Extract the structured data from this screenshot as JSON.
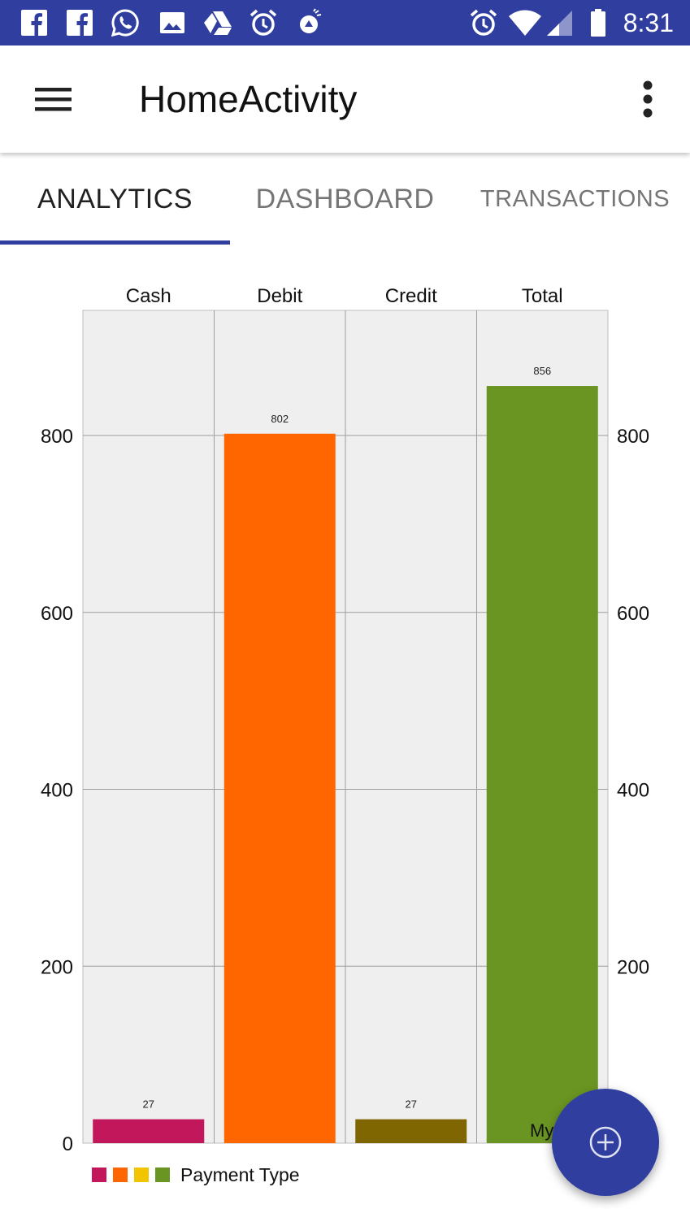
{
  "status_bar": {
    "time": "8:31",
    "left_icons": [
      "facebook-icon",
      "facebook-icon",
      "whatsapp-icon",
      "image-icon",
      "drive-icon",
      "alarm-icon",
      "app-notification-icon"
    ],
    "right_icons": [
      "alarm-icon",
      "wifi-icon",
      "signal-icon",
      "battery-icon"
    ]
  },
  "app_bar": {
    "title": "HomeActivity",
    "menu_icon": "hamburger-menu-icon",
    "overflow_icon": "more-vert-icon"
  },
  "tabs": [
    {
      "label": "ANALYTICS",
      "selected": true
    },
    {
      "label": "DASHBOARD",
      "selected": false
    },
    {
      "label": "TRANSACTIONS",
      "selected": false
    }
  ],
  "chart_data": {
    "type": "bar",
    "categories": [
      "Cash",
      "Debit",
      "Credit",
      "Total"
    ],
    "values": [
      27,
      802,
      27,
      856
    ],
    "data_labels": [
      "27",
      "802",
      "27",
      "856"
    ],
    "colors": [
      "#c2185b",
      "#ff6600",
      "#806600",
      "#6b9522"
    ],
    "ylim": [
      0,
      900
    ],
    "yticks": [
      0,
      200,
      400,
      600,
      800
    ],
    "ytick_labels_left": [
      "0",
      "200",
      "400",
      "600",
      "800"
    ],
    "ytick_labels_right": [
      "200",
      "400",
      "600",
      "800"
    ],
    "grid": true,
    "panel_background": "#efefef",
    "legend": {
      "label": "Payment Type",
      "placement": "bottom-left",
      "swatches": [
        "#c2185b",
        "#ff6600",
        "#f2c500",
        "#6b9522"
      ]
    },
    "overlay_text": "My"
  },
  "fab": {
    "icon": "add-circle-icon",
    "color": "#303f9f"
  }
}
